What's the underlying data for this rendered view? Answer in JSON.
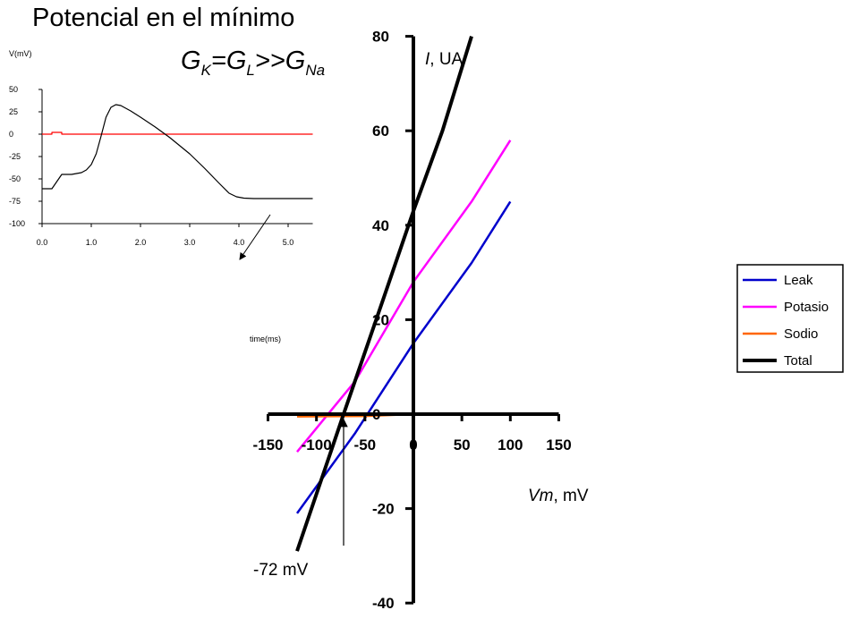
{
  "title": "Potencial en el mínimo",
  "equation": {
    "g1": "G",
    "s1": "K",
    "g2": "=G",
    "s2": "L",
    "g3": ">>G",
    "s3": "Na"
  },
  "chart_data": [
    {
      "type": "line",
      "xlim": [
        -150,
        150
      ],
      "ylim": [
        -40,
        80
      ],
      "xticks": [
        -150,
        -100,
        -50,
        0,
        50,
        100,
        150
      ],
      "yticks": [
        -40,
        -20,
        0,
        20,
        40,
        60,
        80
      ],
      "ylabel": {
        "var": "I",
        "unit": ", UA"
      },
      "xlabel": {
        "var": "Vm",
        "unit": ", mV"
      },
      "annotation": {
        "text": "-72 mV",
        "x": -72,
        "y": 0
      },
      "legend": {
        "position": "right"
      },
      "series": [
        {
          "name": "Leak",
          "color": "#0000cc",
          "x": [
            -120,
            -60,
            0,
            60,
            100
          ],
          "y": [
            -21,
            -4,
            15,
            32,
            45
          ]
        },
        {
          "name": "Potasio",
          "color": "#ff00ff",
          "x": [
            -120,
            -60,
            0,
            60,
            100
          ],
          "y": [
            -8,
            7,
            28,
            45,
            58
          ]
        },
        {
          "name": "Sodio",
          "color": "#ff6600",
          "x": [
            -120,
            -50,
            0,
            50,
            100
          ],
          "y": [
            -0.5,
            -0.4,
            0,
            0,
            0
          ]
        },
        {
          "name": "Total",
          "color": "#000000",
          "x": [
            -120,
            -72,
            -30,
            0,
            30,
            60
          ],
          "y": [
            -29,
            0,
            25,
            43,
            60,
            80
          ]
        }
      ]
    },
    {
      "type": "line",
      "xlim": [
        0,
        5.5
      ],
      "ylim": [
        -100,
        50
      ],
      "xticks": [
        "0.0",
        "1.0",
        "2.0",
        "3.0",
        "4.0",
        "5.0"
      ],
      "yticks": [
        "50",
        "25",
        "0",
        "-25",
        "-50",
        "-75",
        "-100"
      ],
      "ylabel": "V(mV)",
      "xlabel": "time(ms)",
      "series": [
        {
          "name": "",
          "color": "#000000",
          "x": [
            0,
            0.2,
            0.3,
            0.4,
            0.5,
            0.6,
            0.7,
            0.8,
            0.9,
            1.0,
            1.1,
            1.2,
            1.3,
            1.4,
            1.5,
            1.6,
            1.7,
            1.8,
            2.0,
            2.3,
            2.6,
            3.0,
            3.3,
            3.6,
            3.8,
            3.95,
            4.1,
            4.3,
            4.6,
            5.0,
            5.5
          ],
          "y": [
            -61,
            -61,
            -53,
            -45,
            -45,
            -45,
            -44,
            -43,
            -40,
            -34,
            -22,
            -2,
            19,
            30,
            33,
            32,
            29,
            26,
            19,
            8,
            -4,
            -22,
            -38,
            -55,
            -66,
            -70,
            -71.5,
            -72,
            -72,
            -72,
            -72
          ]
        },
        {
          "name": "",
          "color": "#ff0000",
          "x": [
            0,
            0.2,
            0.2,
            0.4,
            0.4,
            5.5
          ],
          "y": [
            0,
            0,
            2,
            2,
            0,
            0
          ]
        }
      ]
    }
  ]
}
